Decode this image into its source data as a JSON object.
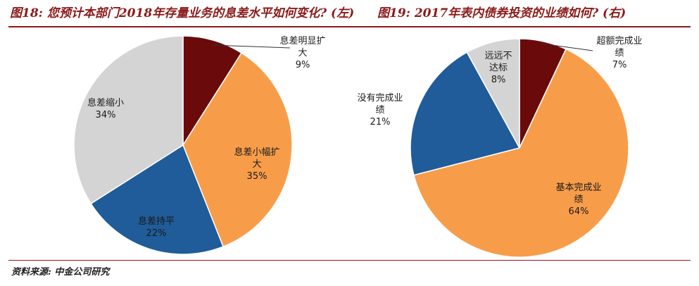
{
  "titles": {
    "left": "图18: 您预计本部门2018年存量业务的息差水平如何变化? (左)",
    "right": "图19: 2017年表内债券投资的业绩如何? (右)"
  },
  "source": "资料来源: 中金公司研究",
  "colors": {
    "dark_red": "#6b0a0a",
    "orange": "#f79d4a",
    "blue": "#1f5c99",
    "gray": "#d4d4d4"
  },
  "chart_data": [
    {
      "type": "pie",
      "title": "图18: 您预计本部门2018年存量业务的息差水平如何变化? (左)",
      "slices": [
        {
          "label": [
            "息差明显扩",
            "大"
          ],
          "value": 9,
          "pct": "9%",
          "color": "#6b0a0a"
        },
        {
          "label": [
            "息差小幅扩",
            "大"
          ],
          "value": 35,
          "pct": "35%",
          "color": "#f79d4a"
        },
        {
          "label": [
            "息差持平"
          ],
          "value": 22,
          "pct": "22%",
          "color": "#1f5c99"
        },
        {
          "label": [
            "息差缩小"
          ],
          "value": 34,
          "pct": "34%",
          "color": "#d4d4d4"
        }
      ]
    },
    {
      "type": "pie",
      "title": "图19: 2017年表内债券投资的业绩如何? (右)",
      "slices": [
        {
          "label": [
            "超额完成业",
            "绩"
          ],
          "value": 7,
          "pct": "7%",
          "color": "#6b0a0a"
        },
        {
          "label": [
            "基本完成业",
            "绩"
          ],
          "value": 64,
          "pct": "64%",
          "color": "#f79d4a"
        },
        {
          "label": [
            "没有完成业",
            "绩"
          ],
          "value": 21,
          "pct": "21%",
          "color": "#1f5c99"
        },
        {
          "label": [
            "远远不",
            "达标"
          ],
          "value": 8,
          "pct": "8%",
          "color": "#d4d4d4"
        }
      ]
    }
  ]
}
